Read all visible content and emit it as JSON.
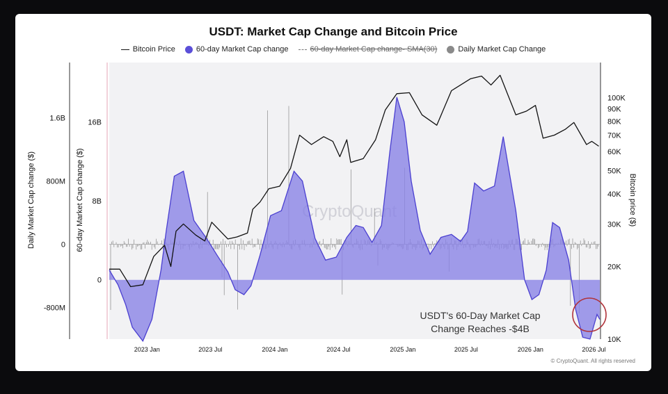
{
  "chart_data": {
    "type": "line",
    "title": "USDT: Market Cap Change and Bitcoin Price",
    "legend": [
      {
        "name": "Bitcoin Price",
        "color": "#111111",
        "marker": "line",
        "enabled": true
      },
      {
        "name": "60-day Market Cap change",
        "color": "#5b4fd8",
        "marker": "dot",
        "enabled": true
      },
      {
        "name": "60-day Market Cap change- SMA(30)",
        "color": "#777777",
        "marker": "dashed-line",
        "enabled": false
      },
      {
        "name": "Daily Market Cap Change",
        "color": "#8a8a8a",
        "marker": "dot",
        "enabled": true
      }
    ],
    "axes": {
      "y_daily_label": "Daily Market Cap change ($)",
      "y_daily_ticks": [
        {
          "label": "1.6B",
          "value": 1600000000
        },
        {
          "label": "800M",
          "value": 800000000
        },
        {
          "label": "0",
          "value": 0
        },
        {
          "label": "-800M",
          "value": -800000000
        }
      ],
      "y_60d_label": "60-day Market Cap change ($)",
      "y_60d_ticks": [
        {
          "label": "16B",
          "value": 16000000000
        },
        {
          "label": "8B",
          "value": 8000000000
        },
        {
          "label": "0",
          "value": 0
        }
      ],
      "y_btc_label": "Bitcoin price ($)",
      "y_btc_scale": "log",
      "y_btc_ticks": [
        {
          "label": "100K",
          "value": 100000
        },
        {
          "label": "90K",
          "value": 90000
        },
        {
          "label": "80K",
          "value": 80000
        },
        {
          "label": "70K",
          "value": 70000
        },
        {
          "label": "60K",
          "value": 60000
        },
        {
          "label": "50K",
          "value": 50000
        },
        {
          "label": "40K",
          "value": 40000
        },
        {
          "label": "30K",
          "value": 30000
        },
        {
          "label": "20K",
          "value": 20000
        },
        {
          "label": "10K",
          "value": 10000
        }
      ],
      "x_ticks": [
        {
          "label": "2023 Jan",
          "date": "2023-01-01"
        },
        {
          "label": "2023 Jul",
          "date": "2023-07-01"
        },
        {
          "label": "2024 Jan",
          "date": "2024-01-01"
        },
        {
          "label": "2024 Jul",
          "date": "2024-07-01"
        },
        {
          "label": "2025 Jan",
          "date": "2025-01-01"
        },
        {
          "label": "2025 Jul",
          "date": "2025-07-01"
        },
        {
          "label": "2026 Jan",
          "date": "2026-01-01"
        },
        {
          "label": "2026 Jul",
          "date": "2026-07-01"
        }
      ],
      "x_range": [
        "2022-09-15",
        "2026-07-20"
      ],
      "daily_range": [
        -1200000000,
        2300000000
      ],
      "mc60_range": [
        -6000000000,
        22000000000
      ],
      "btc_range": [
        10000,
        140000
      ]
    },
    "series": [
      {
        "name": "Bitcoin Price",
        "unit": "USD",
        "points": [
          [
            "2022-09-15",
            19500
          ],
          [
            "2022-10-15",
            19500
          ],
          [
            "2022-11-15",
            16500
          ],
          [
            "2022-12-20",
            16800
          ],
          [
            "2023-01-20",
            22000
          ],
          [
            "2023-02-20",
            24500
          ],
          [
            "2023-03-10",
            20000
          ],
          [
            "2023-03-25",
            28000
          ],
          [
            "2023-04-15",
            30000
          ],
          [
            "2023-05-20",
            27000
          ],
          [
            "2023-06-15",
            25500
          ],
          [
            "2023-07-05",
            30500
          ],
          [
            "2023-08-20",
            26000
          ],
          [
            "2023-09-15",
            26500
          ],
          [
            "2023-10-15",
            27500
          ],
          [
            "2023-10-30",
            34500
          ],
          [
            "2023-11-20",
            37000
          ],
          [
            "2023-12-15",
            42000
          ],
          [
            "2024-01-15",
            43000
          ],
          [
            "2024-02-15",
            51000
          ],
          [
            "2024-03-12",
            70000
          ],
          [
            "2024-04-15",
            64000
          ],
          [
            "2024-05-20",
            69000
          ],
          [
            "2024-06-15",
            66000
          ],
          [
            "2024-07-05",
            57000
          ],
          [
            "2024-07-25",
            67000
          ],
          [
            "2024-08-05",
            54000
          ],
          [
            "2024-09-10",
            56000
          ],
          [
            "2024-10-15",
            67000
          ],
          [
            "2024-11-12",
            89000
          ],
          [
            "2024-12-15",
            104000
          ],
          [
            "2025-01-20",
            105000
          ],
          [
            "2025-02-25",
            85000
          ],
          [
            "2025-04-08",
            77000
          ],
          [
            "2025-05-20",
            107000
          ],
          [
            "2025-07-14",
            120000
          ],
          [
            "2025-08-14",
            123000
          ],
          [
            "2025-09-10",
            113000
          ],
          [
            "2025-10-06",
            124000
          ],
          [
            "2025-11-20",
            85000
          ],
          [
            "2025-12-20",
            88000
          ],
          [
            "2026-01-15",
            93000
          ],
          [
            "2026-02-06",
            68000
          ],
          [
            "2026-03-10",
            70000
          ],
          [
            "2026-04-10",
            74000
          ],
          [
            "2026-05-05",
            79000
          ],
          [
            "2026-06-10",
            64000
          ],
          [
            "2026-06-25",
            66000
          ],
          [
            "2026-07-15",
            63000
          ]
        ]
      },
      {
        "name": "60-day Market Cap change",
        "unit": "USD",
        "points": [
          [
            "2022-09-15",
            1000000000
          ],
          [
            "2022-10-10",
            -500000000
          ],
          [
            "2022-11-01",
            -2500000000
          ],
          [
            "2022-11-20",
            -4800000000
          ],
          [
            "2022-12-20",
            -6200000000
          ],
          [
            "2023-01-15",
            -4000000000
          ],
          [
            "2023-02-10",
            1000000000
          ],
          [
            "2023-02-25",
            5000000000
          ],
          [
            "2023-03-20",
            10500000000
          ],
          [
            "2023-04-15",
            11000000000
          ],
          [
            "2023-05-15",
            6000000000
          ],
          [
            "2023-06-20",
            4200000000
          ],
          [
            "2023-07-20",
            2500000000
          ],
          [
            "2023-08-20",
            800000000
          ],
          [
            "2023-09-10",
            -1000000000
          ],
          [
            "2023-10-05",
            -1500000000
          ],
          [
            "2023-10-25",
            -600000000
          ],
          [
            "2023-11-20",
            2500000000
          ],
          [
            "2023-12-20",
            6500000000
          ],
          [
            "2024-01-20",
            7000000000
          ],
          [
            "2024-02-25",
            11000000000
          ],
          [
            "2024-03-20",
            10000000000
          ],
          [
            "2024-04-25",
            4200000000
          ],
          [
            "2024-05-25",
            2000000000
          ],
          [
            "2024-06-25",
            2300000000
          ],
          [
            "2024-07-25",
            4300000000
          ],
          [
            "2024-08-20",
            5500000000
          ],
          [
            "2024-09-10",
            5300000000
          ],
          [
            "2024-10-05",
            3800000000
          ],
          [
            "2024-11-01",
            5500000000
          ],
          [
            "2024-11-25",
            13000000000
          ],
          [
            "2024-12-15",
            18500000000
          ],
          [
            "2025-01-05",
            16000000000
          ],
          [
            "2025-01-25",
            10000000000
          ],
          [
            "2025-02-20",
            5000000000
          ],
          [
            "2025-03-20",
            2600000000
          ],
          [
            "2025-04-20",
            4300000000
          ],
          [
            "2025-05-20",
            4600000000
          ],
          [
            "2025-06-15",
            3900000000
          ],
          [
            "2025-07-05",
            4900000000
          ],
          [
            "2025-07-25",
            9800000000
          ],
          [
            "2025-08-20",
            9000000000
          ],
          [
            "2025-09-20",
            9500000000
          ],
          [
            "2025-10-15",
            14500000000
          ],
          [
            "2025-11-20",
            7000000000
          ],
          [
            "2025-12-15",
            0
          ],
          [
            "2026-01-05",
            -2000000000
          ],
          [
            "2026-01-25",
            -1500000000
          ],
          [
            "2026-02-15",
            1000000000
          ],
          [
            "2026-03-05",
            5800000000
          ],
          [
            "2026-03-25",
            5300000000
          ],
          [
            "2026-04-20",
            2000000000
          ],
          [
            "2026-05-10",
            -3000000000
          ],
          [
            "2026-05-30",
            -5800000000
          ],
          [
            "2026-06-20",
            -6000000000
          ],
          [
            "2026-07-10",
            -3500000000
          ],
          [
            "2026-07-18",
            -4000000000
          ]
        ]
      }
    ],
    "annotation": {
      "text_line1": "USDT's 60-Day Market Cap",
      "text_line2": "Change Reaches -$4B"
    },
    "watermark": "CryptoQuant",
    "credit": "© CryptoQuant. All rights reserved"
  }
}
